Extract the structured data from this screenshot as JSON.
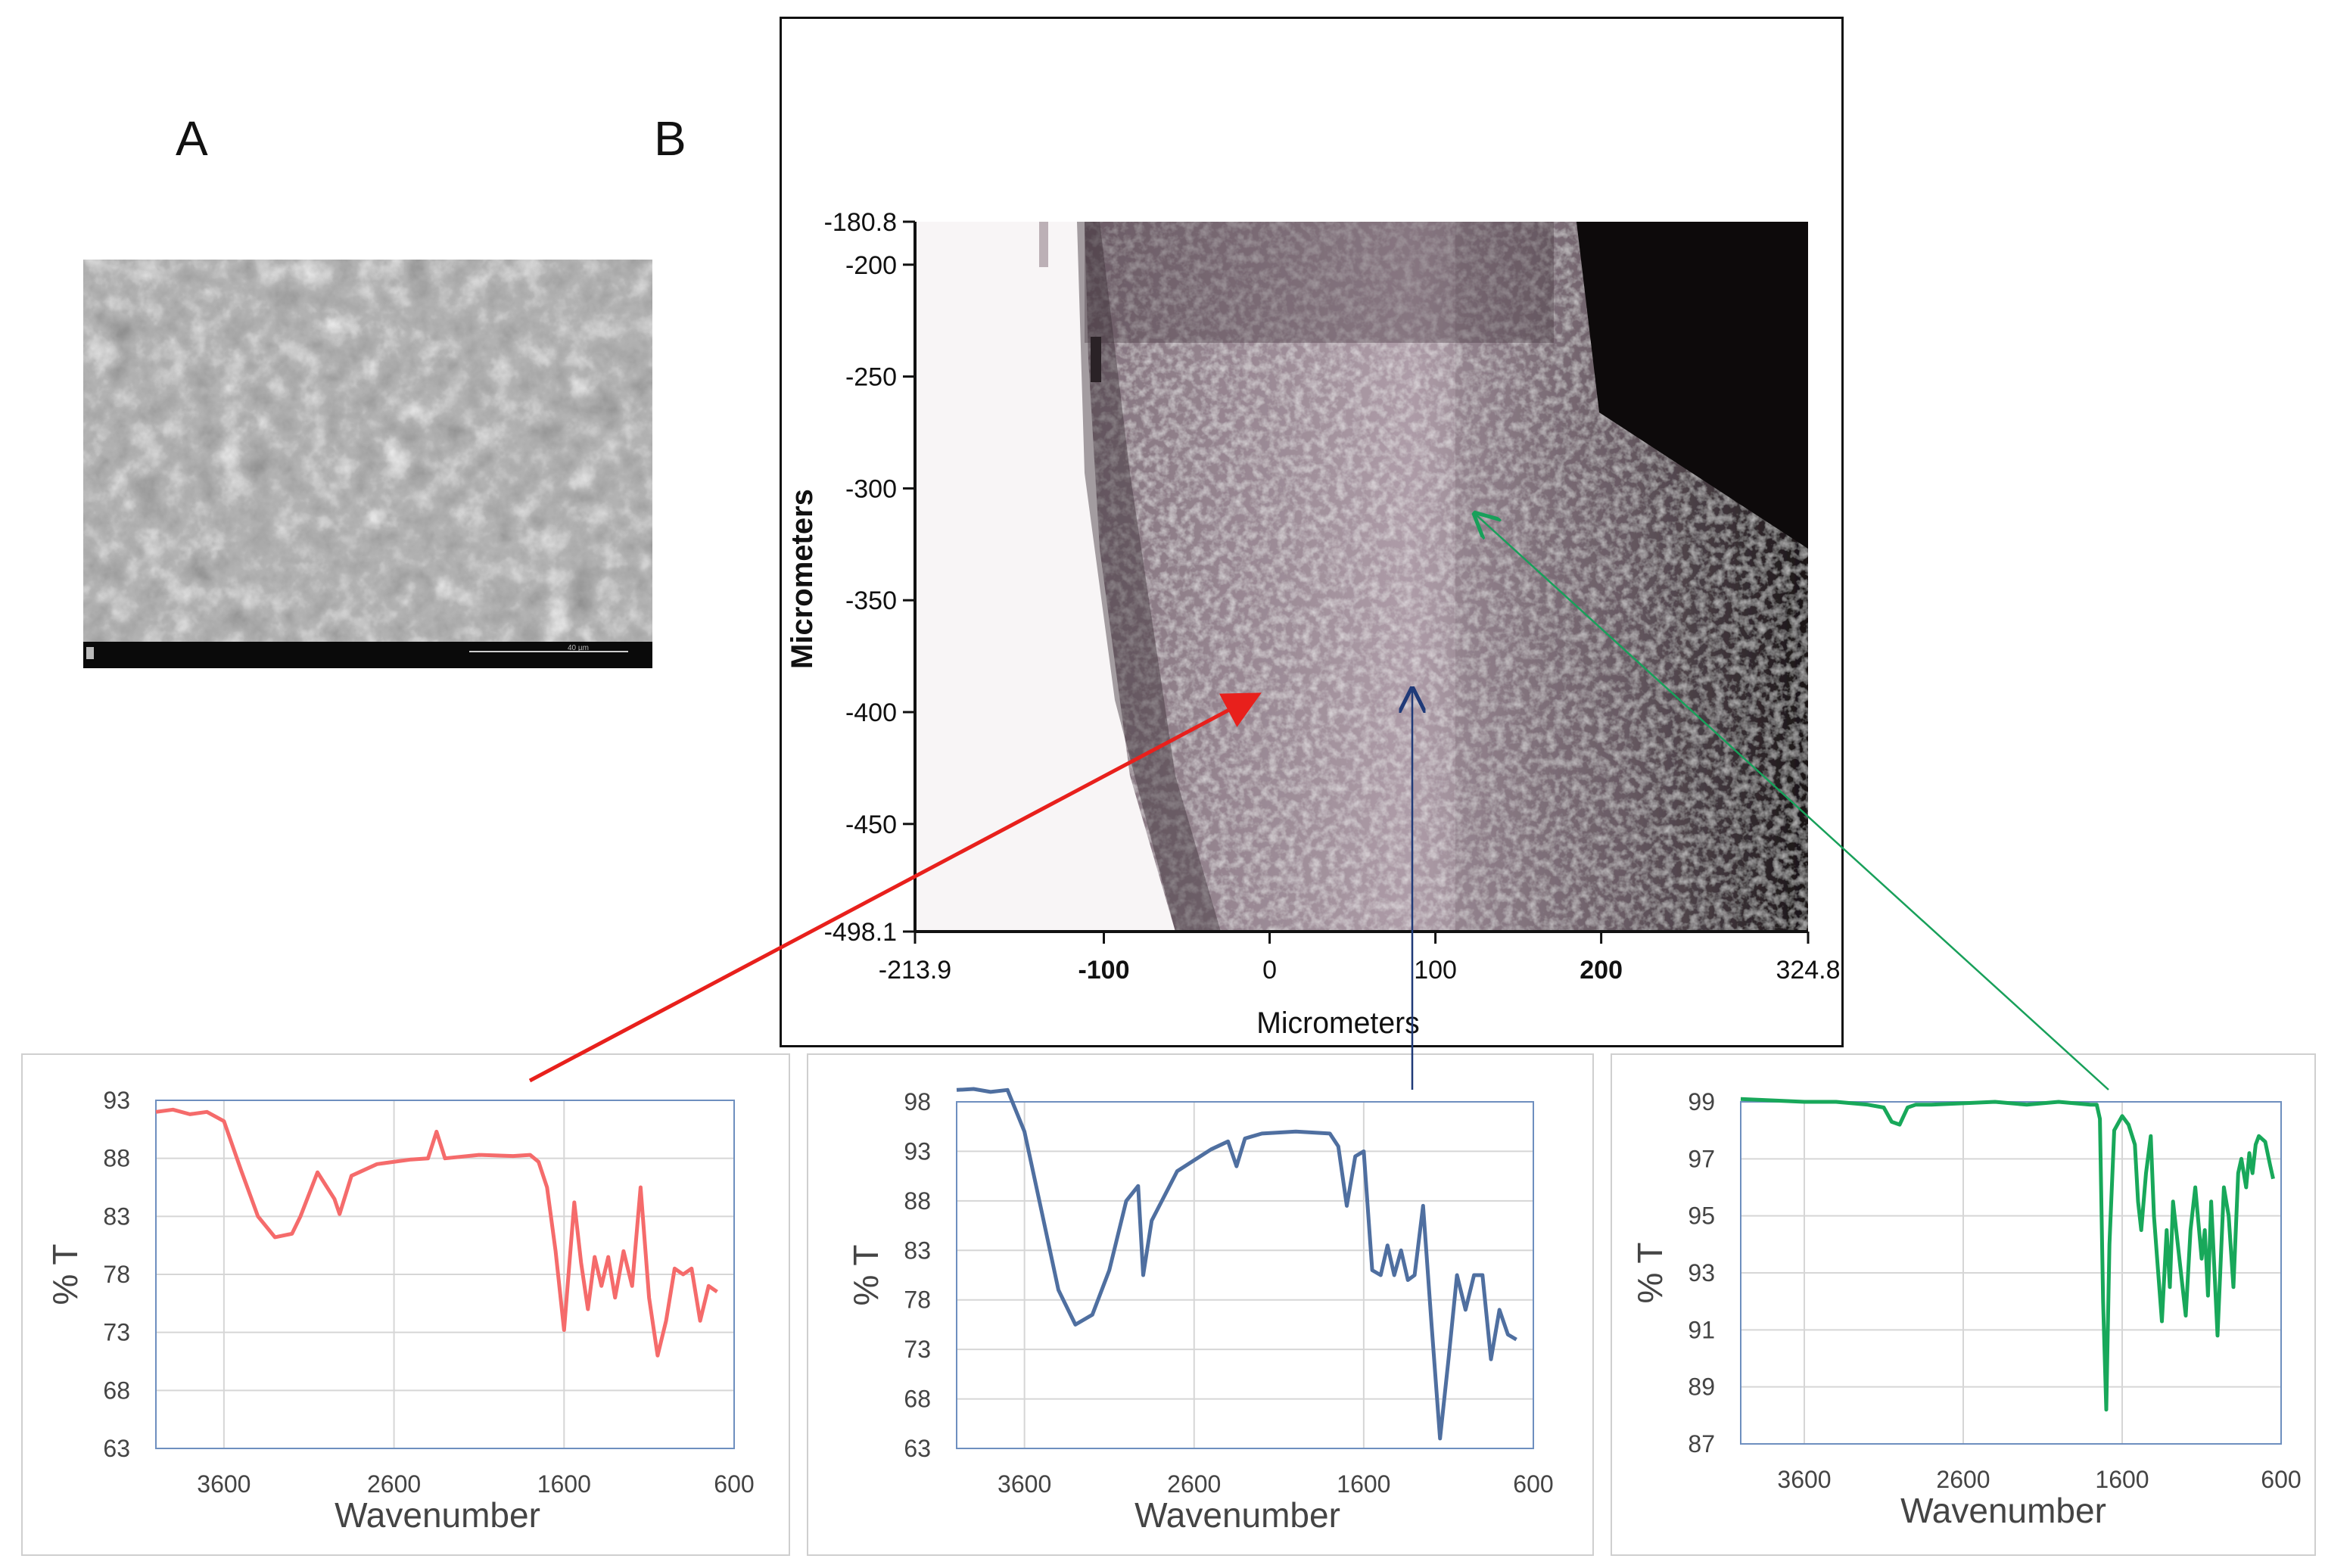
{
  "panels": {
    "a_label": "A",
    "b_label": "B"
  },
  "sem": {
    "info_bar_scale": "40 µm"
  },
  "map": {
    "xlabel": "Micrometers",
    "ylabel": "Micrometers",
    "x_ticks": [
      "-213.9",
      "-100",
      "0",
      "100",
      "200",
      "324.8"
    ],
    "x_tick_values": [
      -213.9,
      -100,
      0,
      100,
      200,
      324.8
    ],
    "y_ticks": [
      "-180.8",
      "-200",
      "-250",
      "-300",
      "-350",
      "-400",
      "-450",
      "-498.1"
    ],
    "y_tick_values": [
      -180.8,
      -200,
      -250,
      -300,
      -350,
      -400,
      -450,
      -498.1
    ],
    "xlim": [
      -213.9,
      324.8
    ],
    "ylim": [
      -498.1,
      -180.8
    ]
  },
  "arrows": {
    "colors": {
      "red": "#e8201c",
      "blue": "#1f3a78",
      "green": "#18a05a"
    }
  },
  "chart_data": [
    {
      "type": "line",
      "name": "spectrum-red",
      "xlabel": "Wavenumber",
      "ylabel": "% T",
      "xlim": [
        4000,
        600
      ],
      "ylim": [
        63,
        93
      ],
      "x_ticks": [
        3600,
        2600,
        1600,
        600
      ],
      "y_ticks": [
        63,
        68,
        73,
        78,
        83,
        88,
        93
      ],
      "color": "#f56b6b",
      "x": [
        4000,
        3900,
        3800,
        3700,
        3600,
        3500,
        3400,
        3300,
        3200,
        3150,
        3050,
        2950,
        2920,
        2850,
        2700,
        2500,
        2400,
        2350,
        2300,
        2100,
        1900,
        1800,
        1750,
        1700,
        1650,
        1600,
        1540,
        1500,
        1460,
        1420,
        1380,
        1340,
        1300,
        1250,
        1200,
        1150,
        1100,
        1050,
        1000,
        950,
        900,
        850,
        800,
        750,
        700
      ],
      "y": [
        92,
        92.2,
        91.8,
        92,
        91.2,
        87,
        83,
        81.2,
        81.5,
        83,
        86.8,
        84.5,
        83.2,
        86.5,
        87.5,
        87.9,
        88,
        90.3,
        88,
        88.3,
        88.2,
        88.3,
        87.7,
        85.5,
        80,
        73.2,
        84.2,
        79,
        75,
        79.5,
        77,
        79.5,
        76,
        80,
        77,
        85.5,
        76,
        71,
        74,
        78.5,
        78,
        78.5,
        74,
        77,
        76.5
      ]
    },
    {
      "type": "line",
      "name": "spectrum-blue",
      "xlabel": "Wavenumber",
      "ylabel": "% T",
      "xlim": [
        4000,
        600
      ],
      "ylim": [
        63,
        98
      ],
      "x_ticks": [
        3600,
        2600,
        1600,
        600
      ],
      "y_ticks": [
        63,
        68,
        73,
        78,
        83,
        88,
        93,
        98
      ],
      "color": "#4f6fa0",
      "x": [
        4000,
        3900,
        3800,
        3700,
        3600,
        3500,
        3400,
        3300,
        3200,
        3100,
        3000,
        2930,
        2900,
        2850,
        2700,
        2500,
        2400,
        2350,
        2300,
        2200,
        2000,
        1800,
        1750,
        1700,
        1650,
        1600,
        1550,
        1500,
        1460,
        1420,
        1380,
        1340,
        1300,
        1250,
        1200,
        1150,
        1100,
        1050,
        1000,
        950,
        900,
        850,
        800,
        750,
        700
      ],
      "y": [
        99.2,
        99.3,
        99,
        99.2,
        95,
        87,
        79,
        75.5,
        76.5,
        81,
        88,
        89.5,
        80.5,
        86,
        91,
        93.2,
        94,
        91.5,
        94.3,
        94.8,
        95,
        94.8,
        93.5,
        87.5,
        92.5,
        93,
        81,
        80.5,
        83.5,
        80.5,
        83,
        80,
        80.5,
        87.5,
        75.5,
        64,
        72,
        80.5,
        77,
        80.5,
        80.5,
        72,
        77,
        74.5,
        74
      ]
    },
    {
      "type": "line",
      "name": "spectrum-green",
      "xlabel": "Wavenumber",
      "ylabel": "% T",
      "xlim": [
        4000,
        600
      ],
      "ylim": [
        87,
        99
      ],
      "x_ticks": [
        3600,
        2600,
        1600,
        600
      ],
      "y_ticks": [
        87,
        89,
        91,
        93,
        95,
        97,
        99
      ],
      "color": "#18a85a",
      "x": [
        4000,
        3800,
        3600,
        3400,
        3200,
        3100,
        3050,
        3000,
        2950,
        2900,
        2800,
        2600,
        2400,
        2200,
        2000,
        1800,
        1760,
        1740,
        1720,
        1700,
        1680,
        1650,
        1600,
        1560,
        1520,
        1500,
        1480,
        1450,
        1420,
        1400,
        1380,
        1350,
        1320,
        1300,
        1280,
        1250,
        1200,
        1170,
        1140,
        1100,
        1080,
        1060,
        1040,
        1000,
        960,
        930,
        900,
        870,
        850,
        820,
        800,
        780,
        760,
        740,
        700,
        670,
        650
      ],
      "y": [
        99.1,
        99.05,
        99,
        99,
        98.9,
        98.8,
        98.3,
        98.2,
        98.8,
        98.9,
        98.9,
        98.95,
        99,
        98.9,
        99,
        98.9,
        98.9,
        98.4,
        92,
        88.2,
        94,
        98,
        98.5,
        98.2,
        97.5,
        95.5,
        94.5,
        96.5,
        97.8,
        95,
        93.5,
        91.3,
        94.5,
        92.5,
        95.5,
        94,
        91.5,
        94.5,
        96,
        93.5,
        94.5,
        92.2,
        95.5,
        90.8,
        96,
        95,
        92.5,
        96.5,
        97,
        96,
        97.2,
        96.5,
        97.5,
        97.8,
        97.6,
        96.8,
        96.3
      ]
    }
  ]
}
